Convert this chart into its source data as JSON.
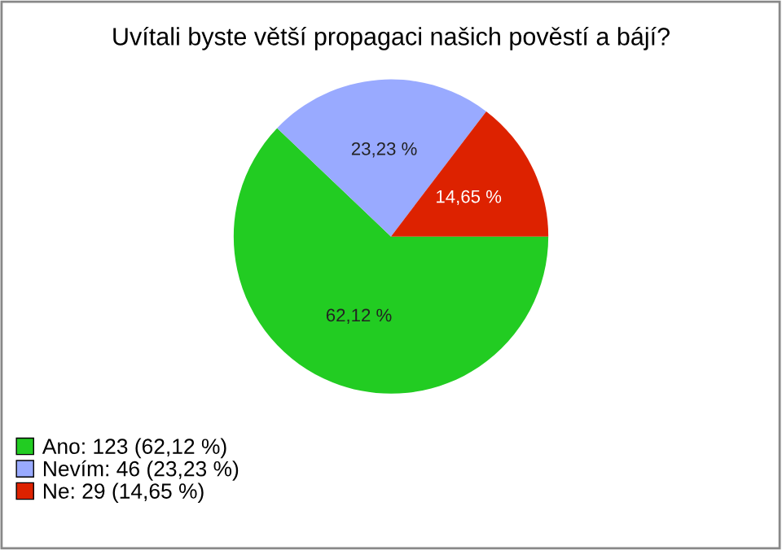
{
  "chart_data": {
    "type": "pie",
    "title": "Uvítali byste větší propagaci našich pověstí a bájí?",
    "categories": [
      "Ano: 123 (62,12 %)",
      "Nevím: 46 (23,23 %)",
      "Ne: 29 (14,65 %)"
    ],
    "values": [
      62.12,
      23.23,
      14.65
    ],
    "colors": [
      "#22cc22",
      "#99aaff",
      "#dd2200"
    ],
    "value_labels": [
      "62,12 %",
      "23,23 %",
      "14,65 %"
    ],
    "legend": "bottom left"
  }
}
